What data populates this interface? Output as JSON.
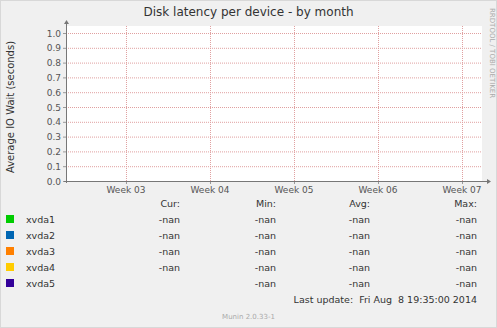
{
  "chart_data": {
    "type": "line",
    "title": "Disk latency per device - by month",
    "y_label": "Average IO Wait (seconds)",
    "x": [],
    "series": [
      {
        "name": "xvda1",
        "color": "#00cc00",
        "values": [],
        "cur": "-nan",
        "min": "-nan",
        "avg": "-nan",
        "max": "-nan"
      },
      {
        "name": "xvda2",
        "color": "#0066b3",
        "values": [],
        "cur": "-nan",
        "min": "-nan",
        "avg": "-nan",
        "max": "-nan"
      },
      {
        "name": "xvda3",
        "color": "#ff8000",
        "values": [],
        "cur": "-nan",
        "min": "-nan",
        "avg": "-nan",
        "max": "-nan"
      },
      {
        "name": "xvda4",
        "color": "#ffcc00",
        "values": [],
        "cur": "-nan",
        "min": "-nan",
        "avg": "-nan",
        "max": "-nan"
      },
      {
        "name": "xvda5",
        "color": "#330099",
        "values": [],
        "cur": null,
        "min": "-nan",
        "avg": "-nan",
        "max": "-nan"
      }
    ],
    "legend_columns": [
      "Cur:",
      "Min:",
      "Avg:",
      "Max:"
    ],
    "xlim": [
      2.286,
      7.238
    ],
    "xticks": [
      {
        "value": 3,
        "label": "Week 03"
      },
      {
        "value": 4,
        "label": "Week 04"
      },
      {
        "value": 5,
        "label": "Week 05"
      },
      {
        "value": 6,
        "label": "Week 06"
      },
      {
        "value": 7,
        "label": "Week 07"
      }
    ],
    "ylim": [
      0,
      1
    ],
    "yticks": [
      {
        "value": 0,
        "label": "0.0"
      },
      {
        "value": 0.1,
        "label": "0.1"
      },
      {
        "value": 0.2,
        "label": "0.2"
      },
      {
        "value": 0.3,
        "label": "0.3"
      },
      {
        "value": 0.4,
        "label": "0.4"
      },
      {
        "value": 0.5,
        "label": "0.5"
      },
      {
        "value": 0.6,
        "label": "0.6"
      },
      {
        "value": 0.7,
        "label": "0.7"
      },
      {
        "value": 0.8,
        "label": "0.8"
      },
      {
        "value": 0.9,
        "label": "0.9"
      },
      {
        "value": 1,
        "label": "1.0"
      }
    ],
    "grid": true,
    "last_update": "Last update:  Fri Aug  8 19:35:00 2014",
    "footer": "Munin 2.0.33-1",
    "watermark": "RRDTOOL / TOBI OETIKER"
  }
}
